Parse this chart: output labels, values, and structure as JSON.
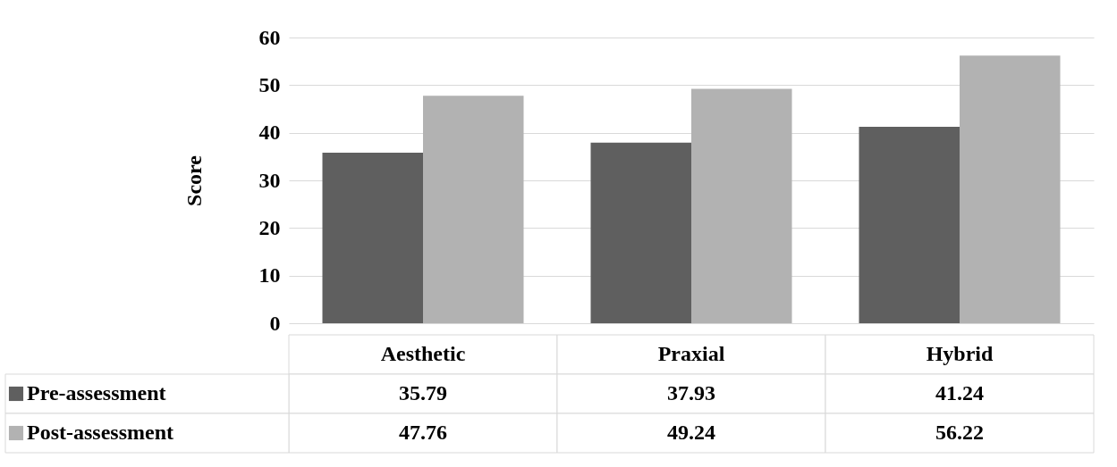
{
  "chart_data": {
    "type": "bar",
    "ylabel": "Score",
    "categories": [
      "Aesthetic",
      "Praxial",
      "Hybrid"
    ],
    "series": [
      {
        "name": "Pre-assessment",
        "color": "#5f5f5f",
        "values": [
          35.79,
          37.93,
          41.24
        ]
      },
      {
        "name": "Post-assessment",
        "color": "#b2b2b2",
        "values": [
          47.76,
          49.24,
          56.22
        ]
      }
    ],
    "ylim": [
      0,
      60
    ],
    "yticks": [
      0,
      10,
      20,
      30,
      40,
      50,
      60
    ],
    "grid": "y",
    "legend": "bottom",
    "data_labels": true
  }
}
